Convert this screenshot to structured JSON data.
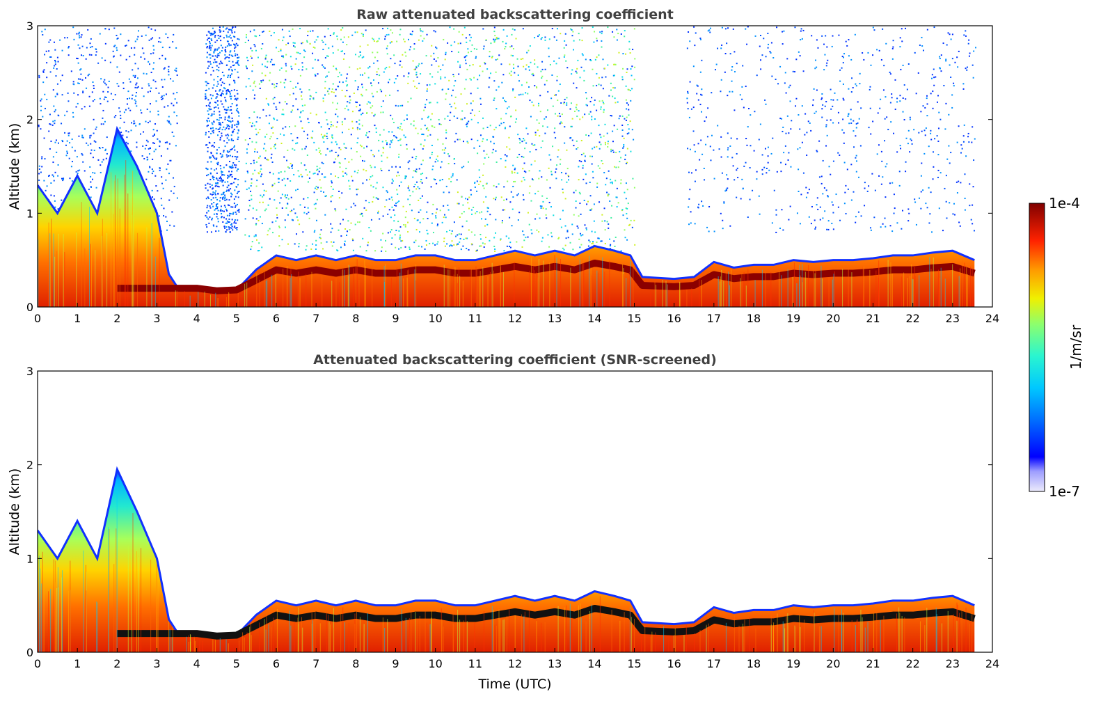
{
  "colors": {
    "ceiling_band": "#8b0000",
    "black_layer": "#111111",
    "title": "#404040"
  },
  "chart_data": [
    {
      "type": "heatmap",
      "title": "Raw attenuated backscattering coefficient",
      "xlabel": "",
      "ylabel": "Altitude (km)",
      "xlim": [
        0,
        24
      ],
      "ylim": [
        0,
        3
      ],
      "xticks": [
        "0",
        "1",
        "2",
        "3",
        "4",
        "5",
        "6",
        "7",
        "8",
        "9",
        "10",
        "11",
        "12",
        "13",
        "14",
        "15",
        "16",
        "17",
        "18",
        "19",
        "20",
        "21",
        "22",
        "23",
        "24"
      ],
      "yticks": [
        "0",
        "1",
        "2",
        "3"
      ],
      "layer_top_km": [
        [
          0,
          1.3
        ],
        [
          0.5,
          1.0
        ],
        [
          1,
          1.4
        ],
        [
          1.5,
          1.0
        ],
        [
          2,
          1.9
        ],
        [
          2.5,
          1.5
        ],
        [
          3,
          1.0
        ],
        [
          3.3,
          0.35
        ],
        [
          3.5,
          0.22
        ],
        [
          4,
          0.2
        ],
        [
          4.5,
          0.17
        ],
        [
          5,
          0.18
        ],
        [
          5.5,
          0.4
        ],
        [
          6,
          0.55
        ],
        [
          6.5,
          0.5
        ],
        [
          7,
          0.55
        ],
        [
          7.5,
          0.5
        ],
        [
          8,
          0.55
        ],
        [
          8.5,
          0.5
        ],
        [
          9,
          0.5
        ],
        [
          9.5,
          0.55
        ],
        [
          10,
          0.55
        ],
        [
          10.5,
          0.5
        ],
        [
          11,
          0.5
        ],
        [
          11.5,
          0.55
        ],
        [
          12,
          0.6
        ],
        [
          12.5,
          0.55
        ],
        [
          13,
          0.6
        ],
        [
          13.5,
          0.55
        ],
        [
          14,
          0.65
        ],
        [
          14.5,
          0.6
        ],
        [
          14.9,
          0.55
        ],
        [
          15.2,
          0.32
        ],
        [
          16,
          0.3
        ],
        [
          16.5,
          0.32
        ],
        [
          17,
          0.48
        ],
        [
          17.5,
          0.42
        ],
        [
          18,
          0.45
        ],
        [
          18.5,
          0.45
        ],
        [
          19,
          0.5
        ],
        [
          19.5,
          0.48
        ],
        [
          20,
          0.5
        ],
        [
          20.5,
          0.5
        ],
        [
          21,
          0.52
        ],
        [
          21.5,
          0.55
        ],
        [
          22,
          0.55
        ],
        [
          22.5,
          0.58
        ],
        [
          23,
          0.6
        ],
        [
          23.55,
          0.5
        ]
      ],
      "noise_regions": [
        {
          "x": [
            0,
            3.5
          ],
          "y": [
            0.8,
            3.0
          ],
          "level": "low"
        },
        {
          "x": [
            4.2,
            5.05
          ],
          "y": [
            0.8,
            3.0
          ],
          "level": "low"
        },
        {
          "x": [
            5.2,
            15.0
          ],
          "y": [
            0.6,
            3.0
          ],
          "level": "high"
        },
        {
          "x": [
            16.3,
            23.6
          ],
          "y": [
            0.8,
            3.0
          ],
          "level": "low"
        }
      ],
      "colorbar": {
        "min": "1e-7",
        "max": "1e-4",
        "label": "1/m/sr",
        "scale": "log"
      }
    },
    {
      "type": "heatmap",
      "title": "Attenuated backscattering coefficient (SNR-screened)",
      "xlabel": "Time (UTC)",
      "ylabel": "Altitude (km)",
      "xlim": [
        0,
        24
      ],
      "ylim": [
        0,
        3
      ],
      "xticks": [
        "0",
        "1",
        "2",
        "3",
        "4",
        "5",
        "6",
        "7",
        "8",
        "9",
        "10",
        "11",
        "12",
        "13",
        "14",
        "15",
        "16",
        "17",
        "18",
        "19",
        "20",
        "21",
        "22",
        "23",
        "24"
      ],
      "yticks": [
        "0",
        "1",
        "2",
        "3"
      ],
      "layer_top_km": [
        [
          0,
          1.3
        ],
        [
          0.5,
          1.0
        ],
        [
          1,
          1.4
        ],
        [
          1.5,
          1.0
        ],
        [
          2,
          1.95
        ],
        [
          2.5,
          1.5
        ],
        [
          3,
          1.0
        ],
        [
          3.3,
          0.35
        ],
        [
          3.5,
          0.22
        ],
        [
          4,
          0.2
        ],
        [
          4.5,
          0.17
        ],
        [
          5,
          0.18
        ],
        [
          5.5,
          0.4
        ],
        [
          6,
          0.55
        ],
        [
          6.5,
          0.5
        ],
        [
          7,
          0.55
        ],
        [
          7.5,
          0.5
        ],
        [
          8,
          0.55
        ],
        [
          8.5,
          0.5
        ],
        [
          9,
          0.5
        ],
        [
          9.5,
          0.55
        ],
        [
          10,
          0.55
        ],
        [
          10.5,
          0.5
        ],
        [
          11,
          0.5
        ],
        [
          11.5,
          0.55
        ],
        [
          12,
          0.6
        ],
        [
          12.5,
          0.55
        ],
        [
          13,
          0.6
        ],
        [
          13.5,
          0.55
        ],
        [
          14,
          0.65
        ],
        [
          14.5,
          0.6
        ],
        [
          14.9,
          0.55
        ],
        [
          15.2,
          0.32
        ],
        [
          16,
          0.3
        ],
        [
          16.5,
          0.32
        ],
        [
          17,
          0.48
        ],
        [
          17.5,
          0.42
        ],
        [
          18,
          0.45
        ],
        [
          18.5,
          0.45
        ],
        [
          19,
          0.5
        ],
        [
          19.5,
          0.48
        ],
        [
          20,
          0.5
        ],
        [
          20.5,
          0.5
        ],
        [
          21,
          0.52
        ],
        [
          21.5,
          0.55
        ],
        [
          22,
          0.55
        ],
        [
          22.5,
          0.58
        ],
        [
          23,
          0.6
        ],
        [
          23.55,
          0.5
        ]
      ],
      "colorbar": {
        "min": "1e-7",
        "max": "1e-4",
        "label": "1/m/sr",
        "scale": "log"
      }
    }
  ]
}
